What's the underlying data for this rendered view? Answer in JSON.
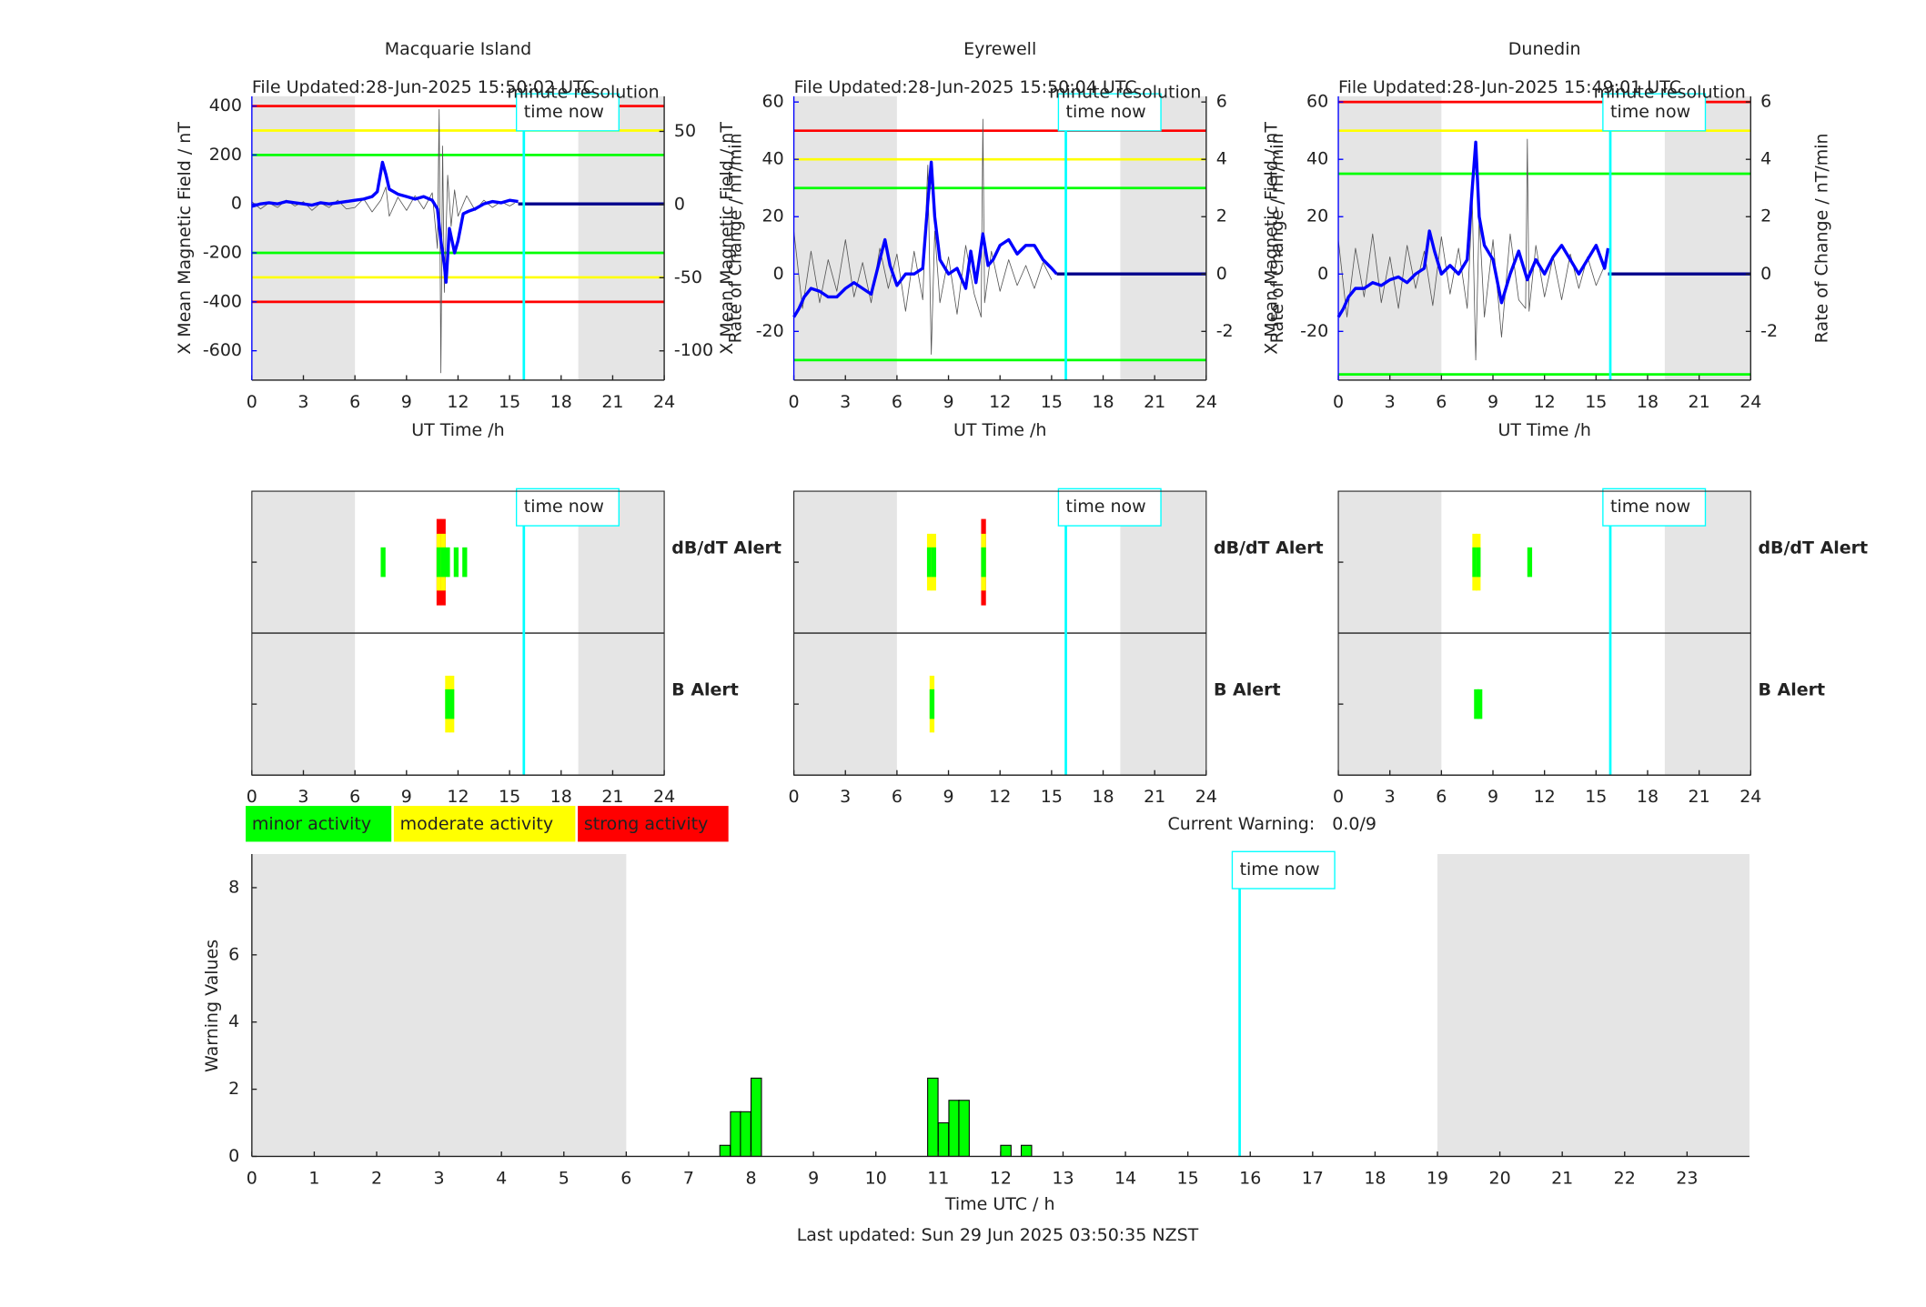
{
  "chart_data": [
    {
      "type": "line",
      "title": "Macquarie Island",
      "note": "File Updated:28-Jun-2025 15:50:02 UTC",
      "resolution": "minute resolution",
      "ylabel": "X Mean Magnetic Field / nT",
      "y2label": "Rate of Change / nT/min",
      "xlabel": "UT Time /h",
      "ycolor": "#0000ff",
      "xlim": [
        0,
        24
      ],
      "xticks": [
        0,
        3,
        6,
        9,
        12,
        15,
        18,
        21,
        24
      ],
      "ylim": [
        -720,
        440
      ],
      "yticks": [
        -600,
        -400,
        -200,
        0,
        200,
        400
      ],
      "y2lim": [
        -120,
        74
      ],
      "y2ticks": [
        -100,
        -50,
        0,
        50
      ],
      "thresholds": [
        {
          "value": 400,
          "color": "#ff0000"
        },
        {
          "value": 300,
          "color": "#ffff00"
        },
        {
          "value": 200,
          "color": "#00ff00"
        },
        {
          "value": -200,
          "color": "#00ff00"
        },
        {
          "value": -300,
          "color": "#ffff00"
        },
        {
          "value": -400,
          "color": "#ff0000"
        }
      ],
      "shaded": [
        [
          0,
          6
        ],
        [
          19,
          24
        ]
      ],
      "time_now": 15.83,
      "time_now_label": "time now",
      "series": [
        {
          "color": "#555555",
          "axis": "y2",
          "x": [
            0,
            0.5,
            1,
            1.5,
            2,
            2.5,
            3,
            3.5,
            4,
            4.5,
            5,
            5.5,
            6,
            6.5,
            7,
            7.5,
            7.8,
            8,
            8.5,
            9,
            9.5,
            10,
            10.5,
            10.8,
            10.9,
            11,
            11.1,
            11.2,
            11.4,
            11.6,
            11.8,
            12,
            12.5,
            13,
            13.5,
            14,
            14.5,
            15,
            15.3
          ],
          "values": [
            2,
            -3,
            1,
            -2,
            3,
            -1,
            2,
            -4,
            1,
            -2,
            3,
            -3,
            -2,
            4,
            -5,
            3,
            12,
            -8,
            5,
            -4,
            6,
            -3,
            8,
            -30,
            65,
            -115,
            40,
            -60,
            20,
            -15,
            10,
            -8,
            6,
            -4,
            3,
            -2,
            2,
            -1,
            1
          ]
        },
        {
          "color": "#0000ff",
          "x": [
            0,
            0.5,
            1,
            1.5,
            2,
            2.5,
            3,
            3.5,
            4,
            4.5,
            5,
            5.5,
            6,
            6.5,
            7,
            7.3,
            7.6,
            7.8,
            8,
            8.5,
            9,
            9.5,
            10,
            10.5,
            10.8,
            11,
            11.2,
            11.3,
            11.5,
            11.8,
            12,
            12.3,
            12.6,
            13,
            13.5,
            14,
            14.5,
            15,
            15.5
          ],
          "values": [
            -10,
            0,
            5,
            0,
            10,
            5,
            0,
            -5,
            5,
            0,
            5,
            10,
            15,
            20,
            30,
            50,
            170,
            120,
            60,
            40,
            30,
            20,
            30,
            15,
            -20,
            -150,
            -250,
            -320,
            -100,
            -200,
            -150,
            -40,
            -30,
            -20,
            0,
            10,
            5,
            15,
            10
          ]
        },
        {
          "color": "#00008b",
          "x": [
            15.5,
            24
          ],
          "values": [
            0,
            0
          ]
        }
      ]
    },
    {
      "type": "line",
      "title": "Eyrewell",
      "note": "File Updated:28-Jun-2025 15:50:04 UTC",
      "resolution": "minute resolution",
      "ylabel": "X Mean Magnetic Field / nT",
      "y2label": "Rate of Change / nT/min",
      "xlabel": "UT Time /h",
      "ycolor": "#0000ff",
      "xlim": [
        0,
        24
      ],
      "xticks": [
        0,
        3,
        6,
        9,
        12,
        15,
        18,
        21,
        24
      ],
      "ylim": [
        -37,
        62
      ],
      "yticks": [
        -20,
        0,
        20,
        40,
        60
      ],
      "y2lim": [
        -3.7,
        6.2
      ],
      "y2ticks": [
        -2,
        0,
        2,
        4,
        6
      ],
      "thresholds": [
        {
          "value": 50,
          "color": "#ff0000"
        },
        {
          "value": 40,
          "color": "#ffff00"
        },
        {
          "value": 30,
          "color": "#00ff00"
        },
        {
          "value": -30,
          "color": "#00ff00"
        }
      ],
      "shaded": [
        [
          0,
          6
        ],
        [
          19,
          24
        ]
      ],
      "time_now": 15.83,
      "time_now_label": "time now",
      "series": [
        {
          "color": "#555555",
          "axis": "y2",
          "x": [
            0,
            0.5,
            1,
            1.5,
            2,
            2.5,
            3,
            3.5,
            4,
            4.5,
            5,
            5.5,
            6,
            6.5,
            7,
            7.5,
            7.8,
            8,
            8.2,
            8.5,
            9,
            9.5,
            10,
            10.5,
            10.9,
            11,
            11.1,
            11.5,
            12,
            12.5,
            13,
            13.5,
            14,
            14.5,
            15
          ],
          "values": [
            1.5,
            -1.2,
            0.8,
            -1,
            0.5,
            -0.6,
            1.2,
            -0.8,
            0.4,
            -1,
            0.9,
            -0.5,
            0.7,
            -1.3,
            0.8,
            -0.9,
            3.8,
            -2.8,
            1.5,
            -1,
            0.6,
            -1.4,
            1,
            -0.7,
            -1.5,
            5.4,
            -1,
            0.8,
            -0.6,
            0.5,
            -0.4,
            0.3,
            -0.5,
            0.4,
            -0.2
          ]
        },
        {
          "color": "#0000ff",
          "x": [
            0,
            0.3,
            0.6,
            1,
            1.5,
            2,
            2.5,
            3,
            3.5,
            4,
            4.5,
            5,
            5.3,
            5.6,
            6,
            6.5,
            7,
            7.5,
            7.8,
            8,
            8.2,
            8.5,
            9,
            9.5,
            10,
            10.3,
            10.6,
            11,
            11.3,
            11.6,
            12,
            12.5,
            13,
            13.5,
            14,
            14.5,
            15,
            15.3
          ],
          "values": [
            -15,
            -12,
            -8,
            -5,
            -6,
            -8,
            -8,
            -5,
            -3,
            -5,
            -7,
            5,
            12,
            3,
            -4,
            0,
            0,
            2,
            25,
            39,
            20,
            5,
            0,
            2,
            -5,
            8,
            -3,
            14,
            3,
            5,
            10,
            12,
            7,
            10,
            10,
            5,
            2,
            0
          ]
        },
        {
          "color": "#00008b",
          "x": [
            15.3,
            24
          ],
          "values": [
            0,
            0
          ]
        }
      ]
    },
    {
      "type": "line",
      "title": "Dunedin",
      "note": "File Updated:28-Jun-2025 15:49:01 UTC",
      "resolution": "minute resolution",
      "ylabel": "X Mean Magnetic Field / nT",
      "y2label": "Rate of Change / nT/min",
      "xlabel": "UT Time /h",
      "ycolor": "#0000ff",
      "xlim": [
        0,
        24
      ],
      "xticks": [
        0,
        3,
        6,
        9,
        12,
        15,
        18,
        21,
        24
      ],
      "ylim": [
        -37,
        62
      ],
      "yticks": [
        -20,
        0,
        20,
        40,
        60
      ],
      "y2lim": [
        -3.7,
        6.2
      ],
      "y2ticks": [
        -2,
        0,
        2,
        4,
        6
      ],
      "thresholds": [
        {
          "value": 60,
          "color": "#ff0000"
        },
        {
          "value": 50,
          "color": "#ffff00"
        },
        {
          "value": 35,
          "color": "#00ff00"
        },
        {
          "value": -35,
          "color": "#00ff00"
        }
      ],
      "shaded": [
        [
          0,
          6
        ],
        [
          19,
          24
        ]
      ],
      "time_now": 15.83,
      "time_now_label": "time now",
      "series": [
        {
          "color": "#555555",
          "axis": "y2",
          "x": [
            0,
            0.5,
            1,
            1.5,
            2,
            2.5,
            3,
            3.5,
            4,
            4.5,
            5,
            5.5,
            6,
            6.5,
            7,
            7.5,
            7.8,
            8,
            8.2,
            8.5,
            9,
            9.5,
            10,
            10.5,
            10.9,
            11,
            11.1,
            11.5,
            12,
            12.5,
            13,
            13.5,
            14,
            14.5,
            15,
            15.5
          ],
          "values": [
            1.2,
            -1.5,
            0.9,
            -0.8,
            1.4,
            -1,
            0.6,
            -1.2,
            1,
            -0.5,
            0.8,
            -1.1,
            1.3,
            -0.7,
            0.9,
            -1.2,
            2.5,
            -3,
            2,
            -1.5,
            1.2,
            -2.2,
            1.4,
            -0.9,
            -1.2,
            4.7,
            -1.3,
            1,
            -0.8,
            0.6,
            -0.9,
            0.7,
            -0.5,
            0.6,
            -0.4,
            0.3
          ]
        },
        {
          "color": "#0000ff",
          "x": [
            0,
            0.3,
            0.6,
            1,
            1.5,
            2,
            2.5,
            3,
            3.5,
            4,
            4.5,
            5,
            5.3,
            5.6,
            6,
            6.5,
            7,
            7.5,
            7.8,
            8,
            8.2,
            8.5,
            9,
            9.5,
            10,
            10.5,
            11,
            11.5,
            12,
            12.5,
            13,
            13.5,
            14,
            14.5,
            15,
            15.5,
            15.7
          ],
          "values": [
            -15,
            -12,
            -8,
            -5,
            -5,
            -3,
            -4,
            -2,
            -1,
            -3,
            0,
            2,
            15,
            8,
            0,
            3,
            0,
            5,
            30,
            46,
            20,
            10,
            5,
            -10,
            0,
            8,
            -2,
            5,
            0,
            6,
            10,
            5,
            0,
            5,
            10,
            2,
            9
          ]
        },
        {
          "color": "#00008b",
          "x": [
            15.7,
            24
          ],
          "values": [
            0,
            0
          ]
        }
      ]
    },
    {
      "type": "alert",
      "xlim": [
        0,
        24
      ],
      "xticks": [
        0,
        3,
        6,
        9,
        12,
        15,
        18,
        21,
        24
      ],
      "shaded": [
        [
          0,
          6
        ],
        [
          19,
          24
        ]
      ],
      "time_now": 15.83,
      "time_now_label": "time now",
      "level_colors": [
        "#00ff00",
        "#ffff00",
        "#ff0000"
      ],
      "rows": [
        {
          "label": "dB/dT Alert",
          "color": "#000000",
          "x": [
            7.5,
            10.75,
            11,
            11.25,
            11.75,
            12.25
          ],
          "values": [
            1,
            3,
            3,
            1,
            1,
            1
          ]
        },
        {
          "label": "B Alert",
          "color": "#0000ff",
          "x": [
            11.25,
            11.5
          ],
          "values": [
            2,
            2
          ]
        }
      ]
    },
    {
      "type": "alert",
      "xlim": [
        0,
        24
      ],
      "xticks": [
        0,
        3,
        6,
        9,
        12,
        15,
        18,
        21,
        24
      ],
      "shaded": [
        [
          0,
          6
        ],
        [
          19,
          24
        ]
      ],
      "time_now": 15.83,
      "time_now_label": "time now",
      "level_colors": [
        "#00ff00",
        "#ffff00",
        "#ff0000"
      ],
      "rows": [
        {
          "label": "dB/dT Alert",
          "color": "#000000",
          "x": [
            7.75,
            8,
            10.9
          ],
          "values": [
            2,
            2,
            3
          ]
        },
        {
          "label": "B Alert",
          "color": "#0000ff",
          "x": [
            7.9
          ],
          "values": [
            2
          ]
        }
      ]
    },
    {
      "type": "alert",
      "xlim": [
        0,
        24
      ],
      "xticks": [
        0,
        3,
        6,
        9,
        12,
        15,
        18,
        21,
        24
      ],
      "shaded": [
        [
          0,
          6
        ],
        [
          19,
          24
        ]
      ],
      "time_now": 15.83,
      "time_now_label": "time now",
      "level_colors": [
        "#00ff00",
        "#ffff00",
        "#ff0000"
      ],
      "rows": [
        {
          "label": "dB/dT Alert",
          "color": "#000000",
          "x": [
            7.8,
            8,
            11
          ],
          "values": [
            2,
            2,
            1
          ]
        },
        {
          "label": "B Alert",
          "color": "#0000ff",
          "x": [
            7.9,
            8.1
          ],
          "values": [
            1,
            1
          ]
        }
      ]
    },
    {
      "type": "bar",
      "ylabel": "Warning Values",
      "xlabel": "Time UTC / h",
      "color": "#00ff00",
      "xlim": [
        0,
        24
      ],
      "xticks": [
        0,
        1,
        2,
        3,
        4,
        5,
        6,
        7,
        8,
        9,
        10,
        11,
        12,
        13,
        14,
        15,
        16,
        17,
        18,
        19,
        20,
        21,
        22,
        23
      ],
      "ylim": [
        0,
        9
      ],
      "yticks": [
        0,
        2,
        4,
        6,
        8
      ],
      "shaded": [
        [
          0,
          6
        ],
        [
          19,
          24
        ]
      ],
      "time_now": 15.83,
      "time_now_label": "time now",
      "x": [
        7.5,
        7.67,
        7.83,
        8.0,
        10.83,
        11.0,
        11.17,
        11.33,
        12.0,
        12.33
      ],
      "values": [
        0.33,
        1.33,
        1.33,
        2.33,
        2.33,
        1.0,
        1.67,
        1.67,
        0.33,
        0.33
      ],
      "legend": [
        {
          "label": "minor activity",
          "color": "#00ff00"
        },
        {
          "label": "moderate activity",
          "color": "#ffff00"
        },
        {
          "label": "strong activity",
          "color": "#ff0000"
        }
      ],
      "current_warning_label": "Current Warning:",
      "current_warning": "0.0/9",
      "footnote": "Last updated: Sun 29 Jun 2025 03:50:35 NZST"
    }
  ]
}
